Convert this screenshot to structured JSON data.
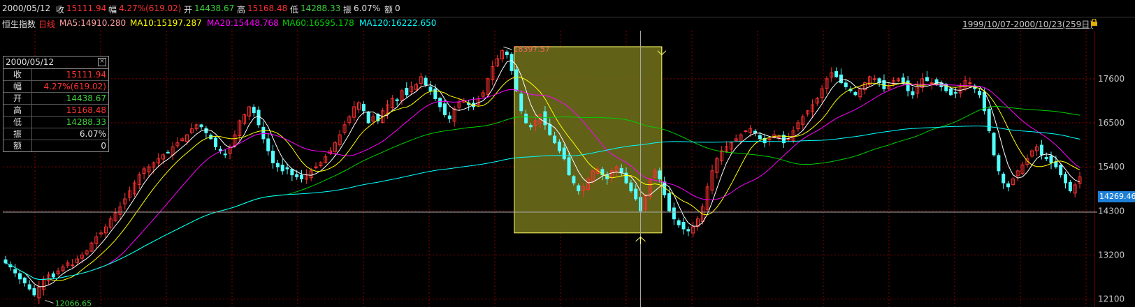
{
  "header": {
    "date": "2000/05/12",
    "close_label": "收",
    "close_value": "15111.94",
    "chg_label": "幅",
    "chg_value": "4.27%(619.02)",
    "open_label": "开",
    "open_value": "14438.67",
    "high_label": "高",
    "high_value": "15168.48",
    "low_label": "低",
    "low_value": "14288.33",
    "amp_label": "振",
    "amp_value": "6.07%",
    "amt_label": "额",
    "amt_value": "0"
  },
  "ma_bar": {
    "index_name": "恒生指数",
    "period": "日线",
    "ma5": "MA5:14910.280",
    "ma10": "MA10:15197.287",
    "ma20": "MA20:15448.768",
    "ma60": "MA60:16595.178",
    "ma120": "MA120:16222.650",
    "range": "1999/10/07-2000/10/23(259日)"
  },
  "info_box": {
    "date": "2000/05/12",
    "close_icon": "close-icon",
    "rows": [
      {
        "label": "收",
        "value": "15111.94"
      },
      {
        "label": "幅",
        "value": "4.27%(619.02)"
      },
      {
        "label": "开",
        "value": "14438.67"
      },
      {
        "label": "高",
        "value": "15168.48"
      },
      {
        "label": "低",
        "value": "14288.33"
      },
      {
        "label": "振",
        "value": "6.07%"
      },
      {
        "label": "额",
        "value": "0"
      }
    ]
  },
  "colors": {
    "up": "#ff3232",
    "down": "#54ffff",
    "ma5": "#ffffff",
    "ma10": "#ffff00",
    "ma20": "#ff00ff",
    "ma60": "#00d000",
    "ma120": "#00ffff",
    "grid": "#8b0000"
  },
  "crosshair_price": "14269.46",
  "chart_data": {
    "type": "candlestick",
    "y_ticks": [
      12100,
      13200,
      14300,
      15400,
      16500,
      17600
    ],
    "y_tick_labels": [
      "12100",
      "13200",
      "14300",
      "15400",
      "16500",
      "17600"
    ],
    "ylim": [
      11900,
      18800
    ],
    "max_label": "18397.57",
    "min_label": "12066.65",
    "ma_labels": {
      "ma5": "MA5",
      "ma10": "MA10",
      "ma20": "MA20",
      "ma60": "MA60",
      "ma120": "MA120"
    },
    "closes": [
      13000,
      12900,
      12750,
      12600,
      12500,
      12350,
      12200,
      12400,
      12600,
      12700,
      12650,
      12800,
      12900,
      13000,
      12950,
      13100,
      13200,
      13300,
      13500,
      13650,
      13750,
      13900,
      14100,
      14250,
      14400,
      14600,
      14800,
      15000,
      15200,
      15350,
      15400,
      15500,
      15600,
      15700,
      15750,
      15900,
      16000,
      16100,
      16200,
      16350,
      16450,
      16400,
      16250,
      16100,
      15900,
      15800,
      15700,
      15900,
      16200,
      16550,
      16700,
      16900,
      16750,
      16450,
      16100,
      15800,
      15500,
      15400,
      15300,
      15350,
      15200,
      15150,
      15100,
      15200,
      15300,
      15400,
      15500,
      15650,
      15800,
      16000,
      16200,
      16450,
      16650,
      16900,
      17000,
      16800,
      16500,
      16650,
      16550,
      16800,
      16950,
      17100,
      17050,
      17300,
      17200,
      17400,
      17450,
      17650,
      17450,
      17300,
      17100,
      16900,
      16700,
      16600,
      16850,
      17000,
      17050,
      16950,
      16900,
      17100,
      17250,
      17600,
      17900,
      18100,
      18300,
      18200,
      17800,
      17300,
      16800,
      16500,
      16400,
      16550,
      16700,
      16450,
      16200,
      16000,
      15800,
      15600,
      15200,
      15000,
      14800,
      14900,
      15100,
      15300,
      15350,
      15200,
      15100,
      15300,
      15400,
      15250,
      15000,
      14800,
      14600,
      14300,
      14700,
      15100,
      15300,
      15100,
      14700,
      14300,
      14100,
      13950,
      13850,
      13800,
      13900,
      14100,
      14400,
      14900,
      15300,
      15600,
      15800,
      15900,
      16000,
      16100,
      16200,
      16300,
      16350,
      16250,
      16100,
      16000,
      16100,
      16200,
      16150,
      16000,
      16100,
      16300,
      16500,
      16650,
      16800,
      16950,
      17100,
      17350,
      17600,
      17750,
      17650,
      17500,
      17400,
      17300,
      17200,
      17350,
      17500,
      17650,
      17600,
      17500,
      17350,
      17400,
      17550,
      17600,
      17500,
      17300,
      17200,
      17400,
      17600,
      17550,
      17500,
      17450,
      17400,
      17300,
      17200,
      17250,
      17400,
      17550,
      17500,
      17350,
      17200,
      16800,
      16300,
      15700,
      15300,
      15000,
      14900,
      15100,
      15300,
      15450,
      15600,
      15800,
      15900,
      15700,
      15600,
      15500,
      15400,
      15200,
      15000,
      14800,
      14950,
      15150
    ]
  }
}
